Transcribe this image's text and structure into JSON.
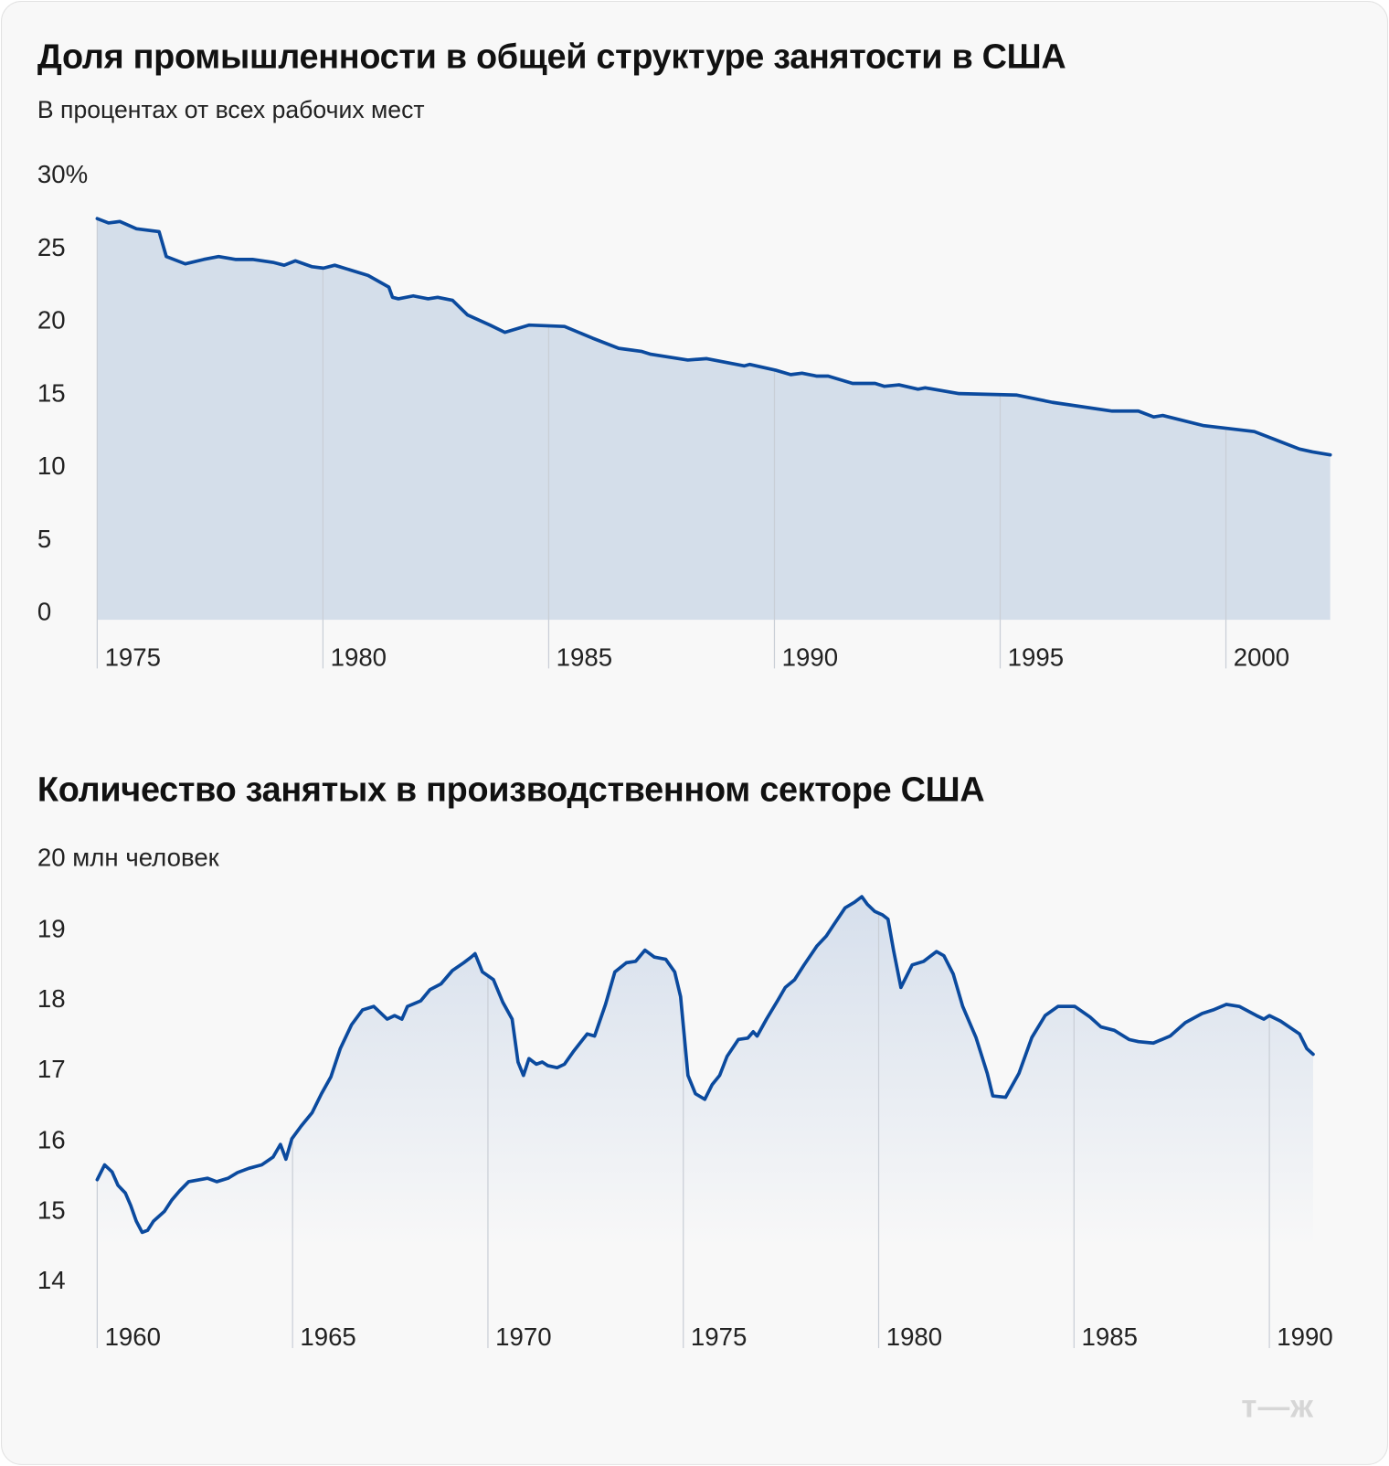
{
  "chart_data": [
    {
      "type": "area",
      "title": "Доля промышленности в общей структуре занятости в США",
      "subtitle": "В процентах от всех рабочих мест",
      "ylim": [
        0,
        30
      ],
      "y_ticks": [
        "30%",
        "25",
        "20",
        "15",
        "10",
        "5",
        "0"
      ],
      "y_tick_values": [
        30,
        25,
        20,
        15,
        10,
        5,
        0
      ],
      "x_ticks": [
        "1975",
        "1980",
        "1985",
        "1990",
        "1995",
        "2000"
      ],
      "x_tick_values": [
        1975,
        1980,
        1985,
        1990,
        1995,
        2000
      ],
      "x": [
        1975.0,
        1975.25,
        1975.5,
        1975.87,
        1976.37,
        1976.53,
        1976.95,
        1977.36,
        1977.69,
        1978.06,
        1978.44,
        1978.89,
        1979.14,
        1979.39,
        1979.76,
        1980.01,
        1980.26,
        1981.0,
        1981.46,
        1981.54,
        1981.67,
        1982.0,
        1982.33,
        1982.54,
        1982.87,
        1983.2,
        1983.7,
        1984.03,
        1984.57,
        1985.35,
        1985.97,
        1986.55,
        1987.05,
        1987.26,
        1988.08,
        1988.5,
        1989.33,
        1989.45,
        1990.03,
        1990.36,
        1990.61,
        1990.94,
        1991.19,
        1991.73,
        1992.23,
        1992.43,
        1992.76,
        1993.18,
        1993.34,
        1994.09,
        1995.37,
        1996.16,
        1997.48,
        1998.06,
        1998.4,
        1998.6,
        1999.51,
        2000.63,
        2001.63,
        2001.92,
        2002.31
      ],
      "y": [
        27.0,
        26.7,
        26.8,
        26.3,
        26.1,
        24.4,
        23.9,
        24.2,
        24.4,
        24.2,
        24.2,
        24.0,
        23.8,
        24.1,
        23.7,
        23.6,
        23.8,
        23.1,
        22.3,
        21.6,
        21.5,
        21.7,
        21.5,
        21.6,
        21.4,
        20.4,
        19.7,
        19.2,
        19.7,
        19.6,
        18.8,
        18.1,
        17.9,
        17.7,
        17.3,
        17.4,
        16.9,
        17.0,
        16.6,
        16.3,
        16.4,
        16.2,
        16.2,
        15.7,
        15.7,
        15.5,
        15.6,
        15.3,
        15.4,
        15.0,
        14.9,
        14.4,
        13.8,
        13.8,
        13.4,
        13.5,
        12.8,
        12.4,
        11.2,
        11.0,
        10.8
      ],
      "color": "#0b4a9e",
      "fill": "#d4deea"
    },
    {
      "type": "area",
      "title": "Количество занятых в производственном секторе США",
      "ylim": [
        14,
        20
      ],
      "y_ticks": [
        "20 млн человек",
        "19",
        "18",
        "17",
        "16",
        "15",
        "14"
      ],
      "y_tick_values": [
        20,
        19,
        18,
        17,
        16,
        15,
        14
      ],
      "x_ticks": [
        "1960",
        "1965",
        "1970",
        "1975",
        "1980",
        "1985",
        "1990"
      ],
      "x_tick_values": [
        1960,
        1965,
        1970,
        1975,
        1980,
        1985,
        1990
      ],
      "x": [
        1960.0,
        1960.19,
        1960.38,
        1960.53,
        1960.72,
        1960.86,
        1961.0,
        1961.15,
        1961.29,
        1961.44,
        1961.72,
        1961.91,
        1962.11,
        1962.34,
        1962.63,
        1962.82,
        1963.06,
        1963.35,
        1963.59,
        1963.88,
        1964.21,
        1964.5,
        1964.69,
        1964.83,
        1964.98,
        1965.22,
        1965.5,
        1965.74,
        1965.98,
        1966.22,
        1966.51,
        1966.79,
        1967.08,
        1967.42,
        1967.61,
        1967.8,
        1967.94,
        1968.28,
        1968.52,
        1968.8,
        1969.09,
        1969.38,
        1969.57,
        1969.67,
        1969.86,
        1970.14,
        1970.38,
        1970.62,
        1970.77,
        1970.91,
        1971.05,
        1971.24,
        1971.39,
        1971.53,
        1971.77,
        1971.96,
        1972.2,
        1972.54,
        1972.73,
        1973.01,
        1973.25,
        1973.54,
        1973.78,
        1974.02,
        1974.26,
        1974.55,
        1974.78,
        1974.93,
        1975.12,
        1975.31,
        1975.55,
        1975.74,
        1975.93,
        1976.12,
        1976.41,
        1976.65,
        1976.79,
        1976.89,
        1977.13,
        1977.42,
        1977.61,
        1977.85,
        1978.09,
        1978.42,
        1978.66,
        1978.85,
        1979.14,
        1979.38,
        1979.57,
        1979.71,
        1979.9,
        1980.1,
        1980.24,
        1980.38,
        1980.57,
        1980.86,
        1981.15,
        1981.48,
        1981.67,
        1981.91,
        1982.15,
        1982.49,
        1982.78,
        1982.92,
        1983.25,
        1983.59,
        1983.92,
        1984.26,
        1984.59,
        1985.02,
        1985.41,
        1985.69,
        1986.03,
        1986.41,
        1986.65,
        1987.03,
        1987.46,
        1987.85,
        1988.28,
        1988.56,
        1988.9,
        1989.23,
        1989.67,
        1989.86,
        1990.0,
        1990.29,
        1990.77,
        1990.96,
        1991.12
      ],
      "y": [
        15.44,
        15.65,
        15.55,
        15.36,
        15.25,
        15.07,
        14.85,
        14.69,
        14.72,
        14.85,
        14.99,
        15.15,
        15.28,
        15.41,
        15.44,
        15.46,
        15.41,
        15.46,
        15.54,
        15.6,
        15.65,
        15.76,
        15.94,
        15.73,
        16.02,
        16.2,
        16.39,
        16.66,
        16.9,
        17.3,
        17.64,
        17.85,
        17.9,
        17.72,
        17.77,
        17.72,
        17.9,
        17.98,
        18.14,
        18.22,
        18.41,
        18.52,
        18.6,
        18.65,
        18.39,
        18.28,
        17.96,
        17.72,
        17.11,
        16.92,
        17.16,
        17.08,
        17.11,
        17.06,
        17.03,
        17.08,
        17.27,
        17.51,
        17.48,
        17.93,
        18.39,
        18.52,
        18.54,
        18.7,
        18.6,
        18.57,
        18.39,
        18.04,
        16.92,
        16.66,
        16.58,
        16.79,
        16.92,
        17.19,
        17.43,
        17.45,
        17.54,
        17.48,
        17.72,
        17.99,
        18.17,
        18.28,
        18.49,
        18.76,
        18.9,
        19.06,
        19.3,
        19.38,
        19.46,
        19.35,
        19.25,
        19.2,
        19.14,
        18.7,
        18.17,
        18.49,
        18.54,
        18.68,
        18.62,
        18.36,
        17.9,
        17.46,
        16.95,
        16.63,
        16.61,
        16.95,
        17.46,
        17.77,
        17.9,
        17.9,
        17.75,
        17.61,
        17.56,
        17.43,
        17.4,
        17.38,
        17.48,
        17.67,
        17.8,
        17.85,
        17.93,
        17.9,
        17.77,
        17.72,
        17.77,
        17.69,
        17.51,
        17.3,
        17.22
      ],
      "color": "#0b4a9e",
      "fill": "#dbe3ee"
    }
  ],
  "logo": "т—ж"
}
